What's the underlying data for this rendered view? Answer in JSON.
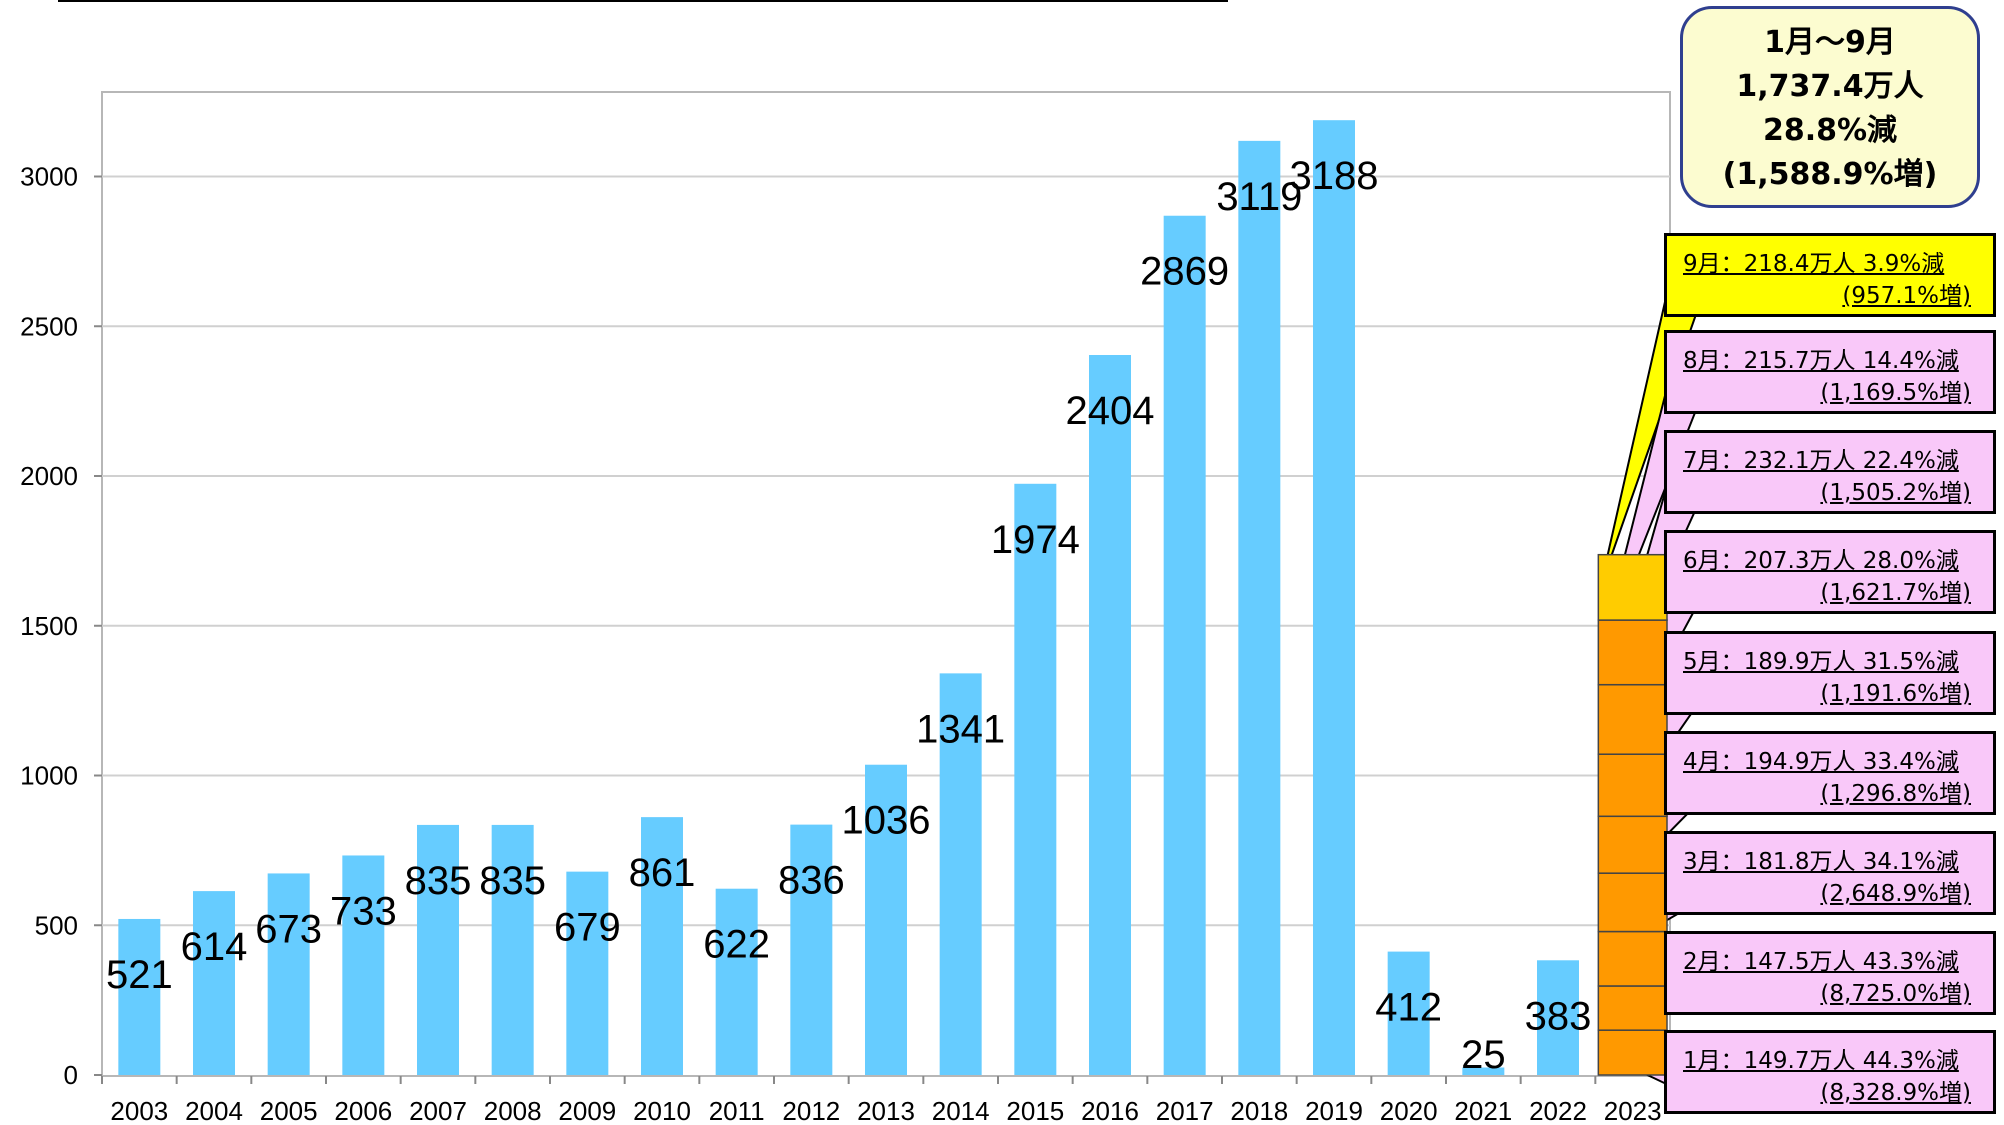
{
  "chart_data": {
    "type": "bar",
    "categories": [
      "2003",
      "2004",
      "2005",
      "2006",
      "2007",
      "2008",
      "2009",
      "2010",
      "2011",
      "2012",
      "2013",
      "2014",
      "2015",
      "2016",
      "2017",
      "2018",
      "2019",
      "2020",
      "2021",
      "2022",
      "2023"
    ],
    "values": [
      521,
      614,
      673,
      733,
      835,
      835,
      679,
      861,
      622,
      836,
      1036,
      1341,
      1974,
      2404,
      2869,
      3119,
      3188,
      412,
      25,
      383,
      null
    ],
    "data_labels": [
      "521",
      "614",
      "673",
      "733",
      "835",
      "835",
      "679",
      "861",
      "622",
      "836",
      "1036",
      "1341",
      "1974",
      "2404",
      "2869",
      "3119",
      "3188",
      "412",
      "25",
      "383",
      ""
    ],
    "ylim": [
      0,
      3300
    ],
    "yticks": [
      0,
      500,
      1000,
      1500,
      2000,
      2500,
      3000
    ],
    "grid": true,
    "bar_color": "#66ccff",
    "stacked_2023": {
      "months": [
        "1月",
        "2月",
        "3月",
        "4月",
        "5月",
        "6月",
        "7月",
        "8月",
        "9月"
      ],
      "values": [
        149.7,
        147.5,
        181.8,
        194.9,
        189.9,
        207.3,
        232.1,
        215.7,
        218.4
      ],
      "colors": {
        "past_months": "#ff9900",
        "current_month": "#ffcc00"
      }
    }
  },
  "summary": {
    "period": "1月～9月",
    "total": "1,737.4万人",
    "change": "28.8%減",
    "change_vs_prev": "(1,588.9%増)",
    "colors": {
      "fill": "#fcfcd0",
      "border": "#2f3f8f"
    }
  },
  "callouts": [
    {
      "line1": "9月：218.4万人 3.9%減",
      "line2": "(957.1%増)",
      "color": "#ffff00"
    },
    {
      "line1": "8月：215.7万人 14.4%減",
      "line2": "(1,169.5%増)",
      "color": "#f9c8f9"
    },
    {
      "line1": "7月：232.1万人 22.4%減",
      "line2": "(1,505.2%増)",
      "color": "#f9c8f9"
    },
    {
      "line1": "6月：207.3万人 28.0%減",
      "line2": "(1,621.7%増)",
      "color": "#f9c8f9"
    },
    {
      "line1": "5月：189.9万人 31.5%減",
      "line2": "(1,191.6%増)",
      "color": "#f9c8f9"
    },
    {
      "line1": "4月：194.9万人 33.4%減",
      "line2": "(1,296.8%増)",
      "color": "#f9c8f9"
    },
    {
      "line1": "3月：181.8万人 34.1%減",
      "line2": "(2,648.9%増)",
      "color": "#f9c8f9"
    },
    {
      "line1": "2月：147.5万人 43.3%減",
      "line2": "(8,725.0%増)",
      "color": "#f9c8f9"
    },
    {
      "line1": "1月：149.7万人 44.3%減",
      "line2": "(8,328.9%増)",
      "color": "#f9c8f9"
    }
  ]
}
